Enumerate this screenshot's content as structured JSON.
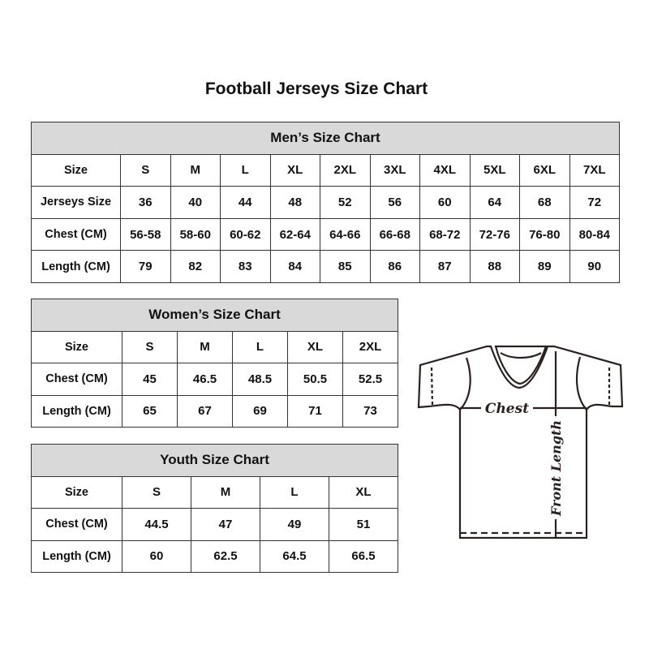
{
  "title": "Football Jerseys Size Chart",
  "men": {
    "heading": "Men’s Size Chart",
    "rows": [
      {
        "label": "Size",
        "values": [
          "S",
          "M",
          "L",
          "XL",
          "2XL",
          "3XL",
          "4XL",
          "5XL",
          "6XL",
          "7XL"
        ]
      },
      {
        "label": "Jerseys Size",
        "values": [
          "36",
          "40",
          "44",
          "48",
          "52",
          "56",
          "60",
          "64",
          "68",
          "72"
        ]
      },
      {
        "label": "Chest (CM)",
        "values": [
          "56-58",
          "58-60",
          "60-62",
          "62-64",
          "64-66",
          "66-68",
          "68-72",
          "72-76",
          "76-80",
          "80-84"
        ]
      },
      {
        "label": "Length (CM)",
        "values": [
          "79",
          "82",
          "83",
          "84",
          "85",
          "86",
          "87",
          "88",
          "89",
          "90"
        ]
      }
    ]
  },
  "women": {
    "heading": "Women’s Size Chart",
    "rows": [
      {
        "label": "Size",
        "values": [
          "S",
          "M",
          "L",
          "XL",
          "2XL"
        ]
      },
      {
        "label": "Chest (CM)",
        "values": [
          "45",
          "46.5",
          "48.5",
          "50.5",
          "52.5"
        ]
      },
      {
        "label": "Length (CM)",
        "values": [
          "65",
          "67",
          "69",
          "71",
          "73"
        ]
      }
    ]
  },
  "youth": {
    "heading": "Youth Size Chart",
    "rows": [
      {
        "label": "Size",
        "values": [
          "S",
          "M",
          "L",
          "XL"
        ]
      },
      {
        "label": "Chest (CM)",
        "values": [
          "44.5",
          "47",
          "49",
          "51"
        ]
      },
      {
        "label": "Length (CM)",
        "values": [
          "60",
          "62.5",
          "64.5",
          "66.5"
        ]
      }
    ]
  },
  "diagram": {
    "chest_label": "Chest",
    "length_label": "Front Length"
  },
  "colors": {
    "header_fill": "#d9d9d9",
    "border": "#333333"
  }
}
